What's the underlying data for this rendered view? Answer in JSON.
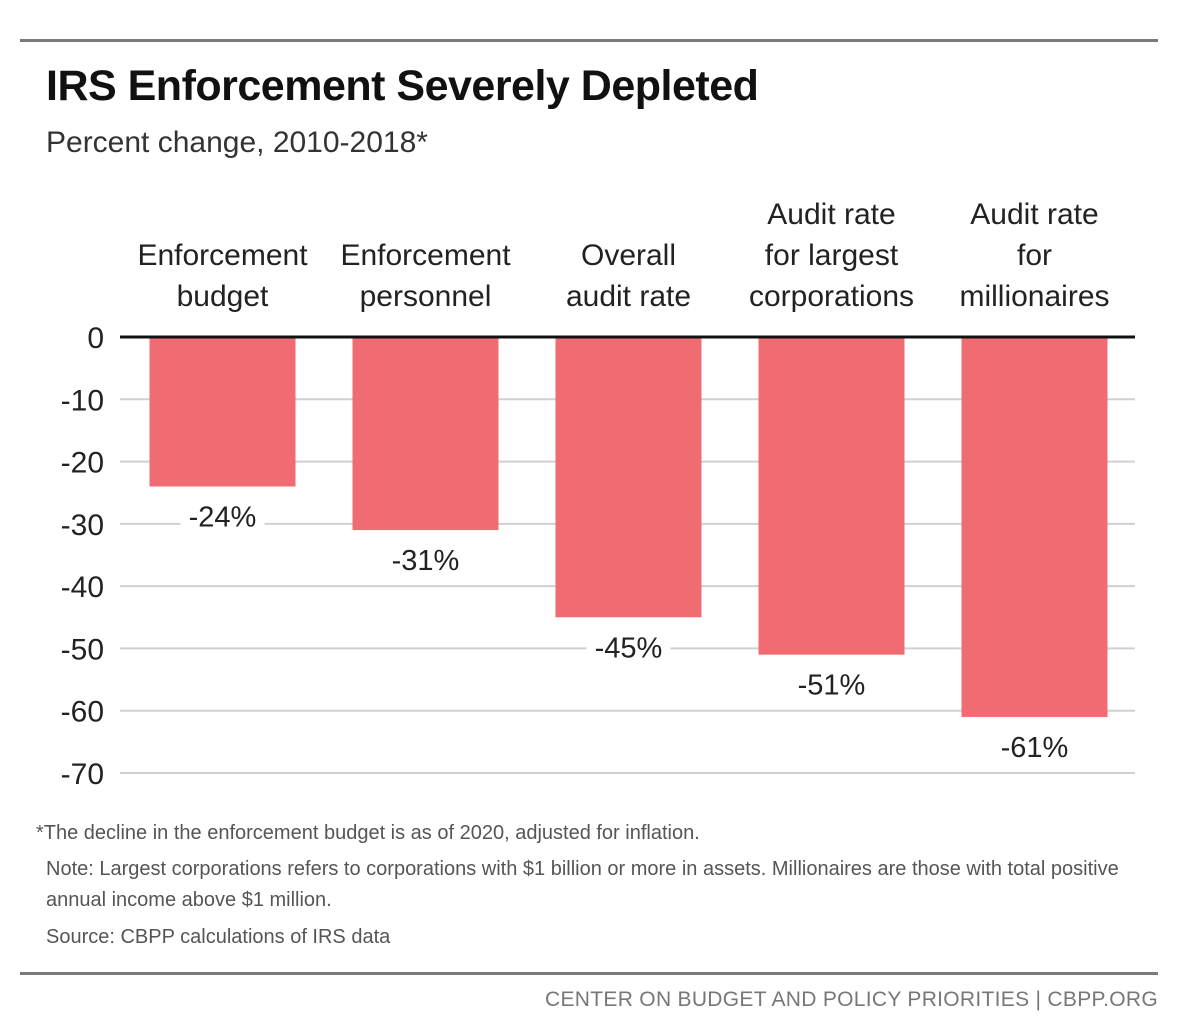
{
  "title": "IRS Enforcement Severely Depleted",
  "subtitle": "Percent change, 2010-2018*",
  "notes": {
    "footnote": "*The decline in the enforcement budget is as of 2020, adjusted for inflation.",
    "note": "Note: Largest corporations refers to corporations with $1 billion or more in assets. Millionaires are those with total positive annual income above $1 million.",
    "source": "Source: CBPP calculations of IRS data"
  },
  "footer": "CENTER ON BUDGET AND POLICY PRIORITIES | CBPP.ORG",
  "colors": {
    "bar": "#f06b72",
    "zero_line": "#111111",
    "grid": "#d0d0d0"
  },
  "chart_data": {
    "type": "bar",
    "title": "IRS Enforcement Severely Depleted",
    "subtitle": "Percent change, 2010-2018*",
    "xlabel": "",
    "ylabel": "",
    "categories": [
      [
        "Enforcement",
        "budget"
      ],
      [
        "Enforcement",
        "personnel"
      ],
      [
        "Overall",
        "audit rate"
      ],
      [
        "Audit rate",
        "for largest",
        "corporations"
      ],
      [
        "Audit rate",
        "for",
        "millionaires"
      ]
    ],
    "values": [
      -24,
      -31,
      -45,
      -51,
      -61
    ],
    "data_labels": [
      "-24%",
      "-31%",
      "-45%",
      "-51%",
      "-61%"
    ],
    "ylim": [
      -70,
      0
    ],
    "yticks": [
      0,
      -10,
      -20,
      -30,
      -40,
      -50,
      -60,
      -70
    ],
    "grid": true,
    "legend": "none"
  }
}
